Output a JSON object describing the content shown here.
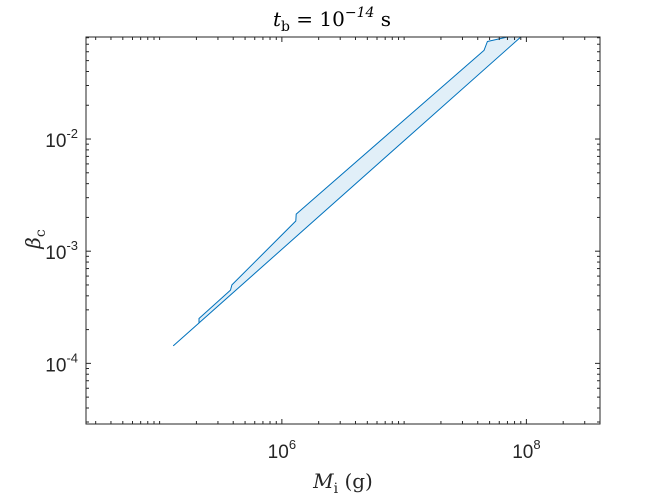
{
  "chart_data": {
    "type": "area",
    "title": {
      "base": "t",
      "sub": "b",
      "mid": " = 10",
      "sup": "−14",
      "tail": " s"
    },
    "xlabel": {
      "base": "M",
      "sub": "i",
      "tail": " (g)"
    },
    "ylabel": {
      "base": "β",
      "sub": "c"
    },
    "xscale": "log",
    "yscale": "log",
    "xlim": [
      25000,
      400000000
    ],
    "ylim": [
      2.88e-05,
      0.0812
    ],
    "xticks": [
      {
        "value": 1000000,
        "base": "10",
        "exp": "6"
      },
      {
        "value": 100000000,
        "base": "10",
        "exp": "8"
      }
    ],
    "yticks": [
      {
        "value": 0.0001,
        "base": "10",
        "exp": "-4"
      },
      {
        "value": 0.001,
        "base": "10",
        "exp": "-3"
      },
      {
        "value": 0.01,
        "base": "10",
        "exp": "-2"
      }
    ],
    "grid": false,
    "series": [
      {
        "lower": [
          {
            "x": 130000,
            "y": 0.000144
          },
          {
            "x": 90000000,
            "y": 0.0812
          }
        ],
        "upper": [
          {
            "x": 210000,
            "y": 0.000229
          },
          {
            "x": 210000,
            "y": 0.000251
          },
          {
            "x": 380000,
            "y": 0.00045
          },
          {
            "x": 390000,
            "y": 0.000501
          },
          {
            "x": 1300000,
            "y": 0.00186
          },
          {
            "x": 1310000,
            "y": 0.00214
          },
          {
            "x": 45000000,
            "y": 0.0617
          },
          {
            "x": 48000000,
            "y": 0.0741
          },
          {
            "x": 70000000,
            "y": 0.0812
          }
        ]
      }
    ],
    "colors": {
      "line": "#0072BD",
      "fill": "#E1EFF8",
      "axes": "#262626"
    }
  }
}
